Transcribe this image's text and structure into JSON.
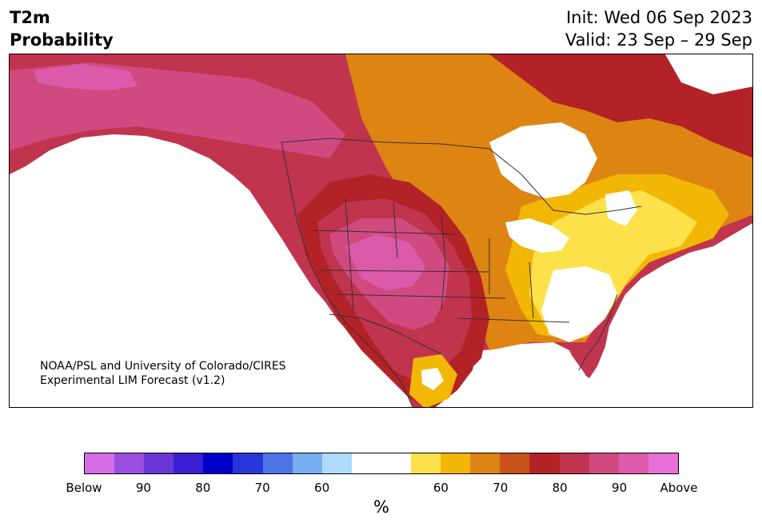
{
  "header": {
    "variable": "T2m",
    "product": "Probability",
    "init": "Init: Wed 06 Sep 2023",
    "valid": "Valid: 23 Sep – 29 Sep"
  },
  "credit": {
    "line1": "NOAA/PSL and University of Colorado/CIRES",
    "line2": "Experimental LIM Forecast (v1.2)"
  },
  "colorbar": {
    "colors": [
      "#d56de6",
      "#9b4fe0",
      "#6a36d6",
      "#3a1fd2",
      "#0000c8",
      "#2636d8",
      "#4f74e6",
      "#76aef0",
      "#aedcfa",
      "#ffffff",
      "#ffffff",
      "#fde14b",
      "#f2b705",
      "#de8413",
      "#c8531b",
      "#b32226",
      "#c0344e",
      "#d04a80",
      "#db5aaa",
      "#e870d8"
    ],
    "labels": [
      "Below",
      "90",
      "80",
      "70",
      "60",
      "60",
      "70",
      "80",
      "90",
      "Above"
    ],
    "unit": "%"
  },
  "map": {
    "palette": {
      "ocean": "#ffffff",
      "above90": "#d04a80",
      "above95": "#db5aaa",
      "above80": "#c0344e",
      "above70": "#b32226",
      "above65": "#c8531b",
      "above60": "#de8413",
      "above55": "#f2b705",
      "above50": "#fde14b",
      "neutral": "#ffffff",
      "borders": "#333333"
    }
  }
}
